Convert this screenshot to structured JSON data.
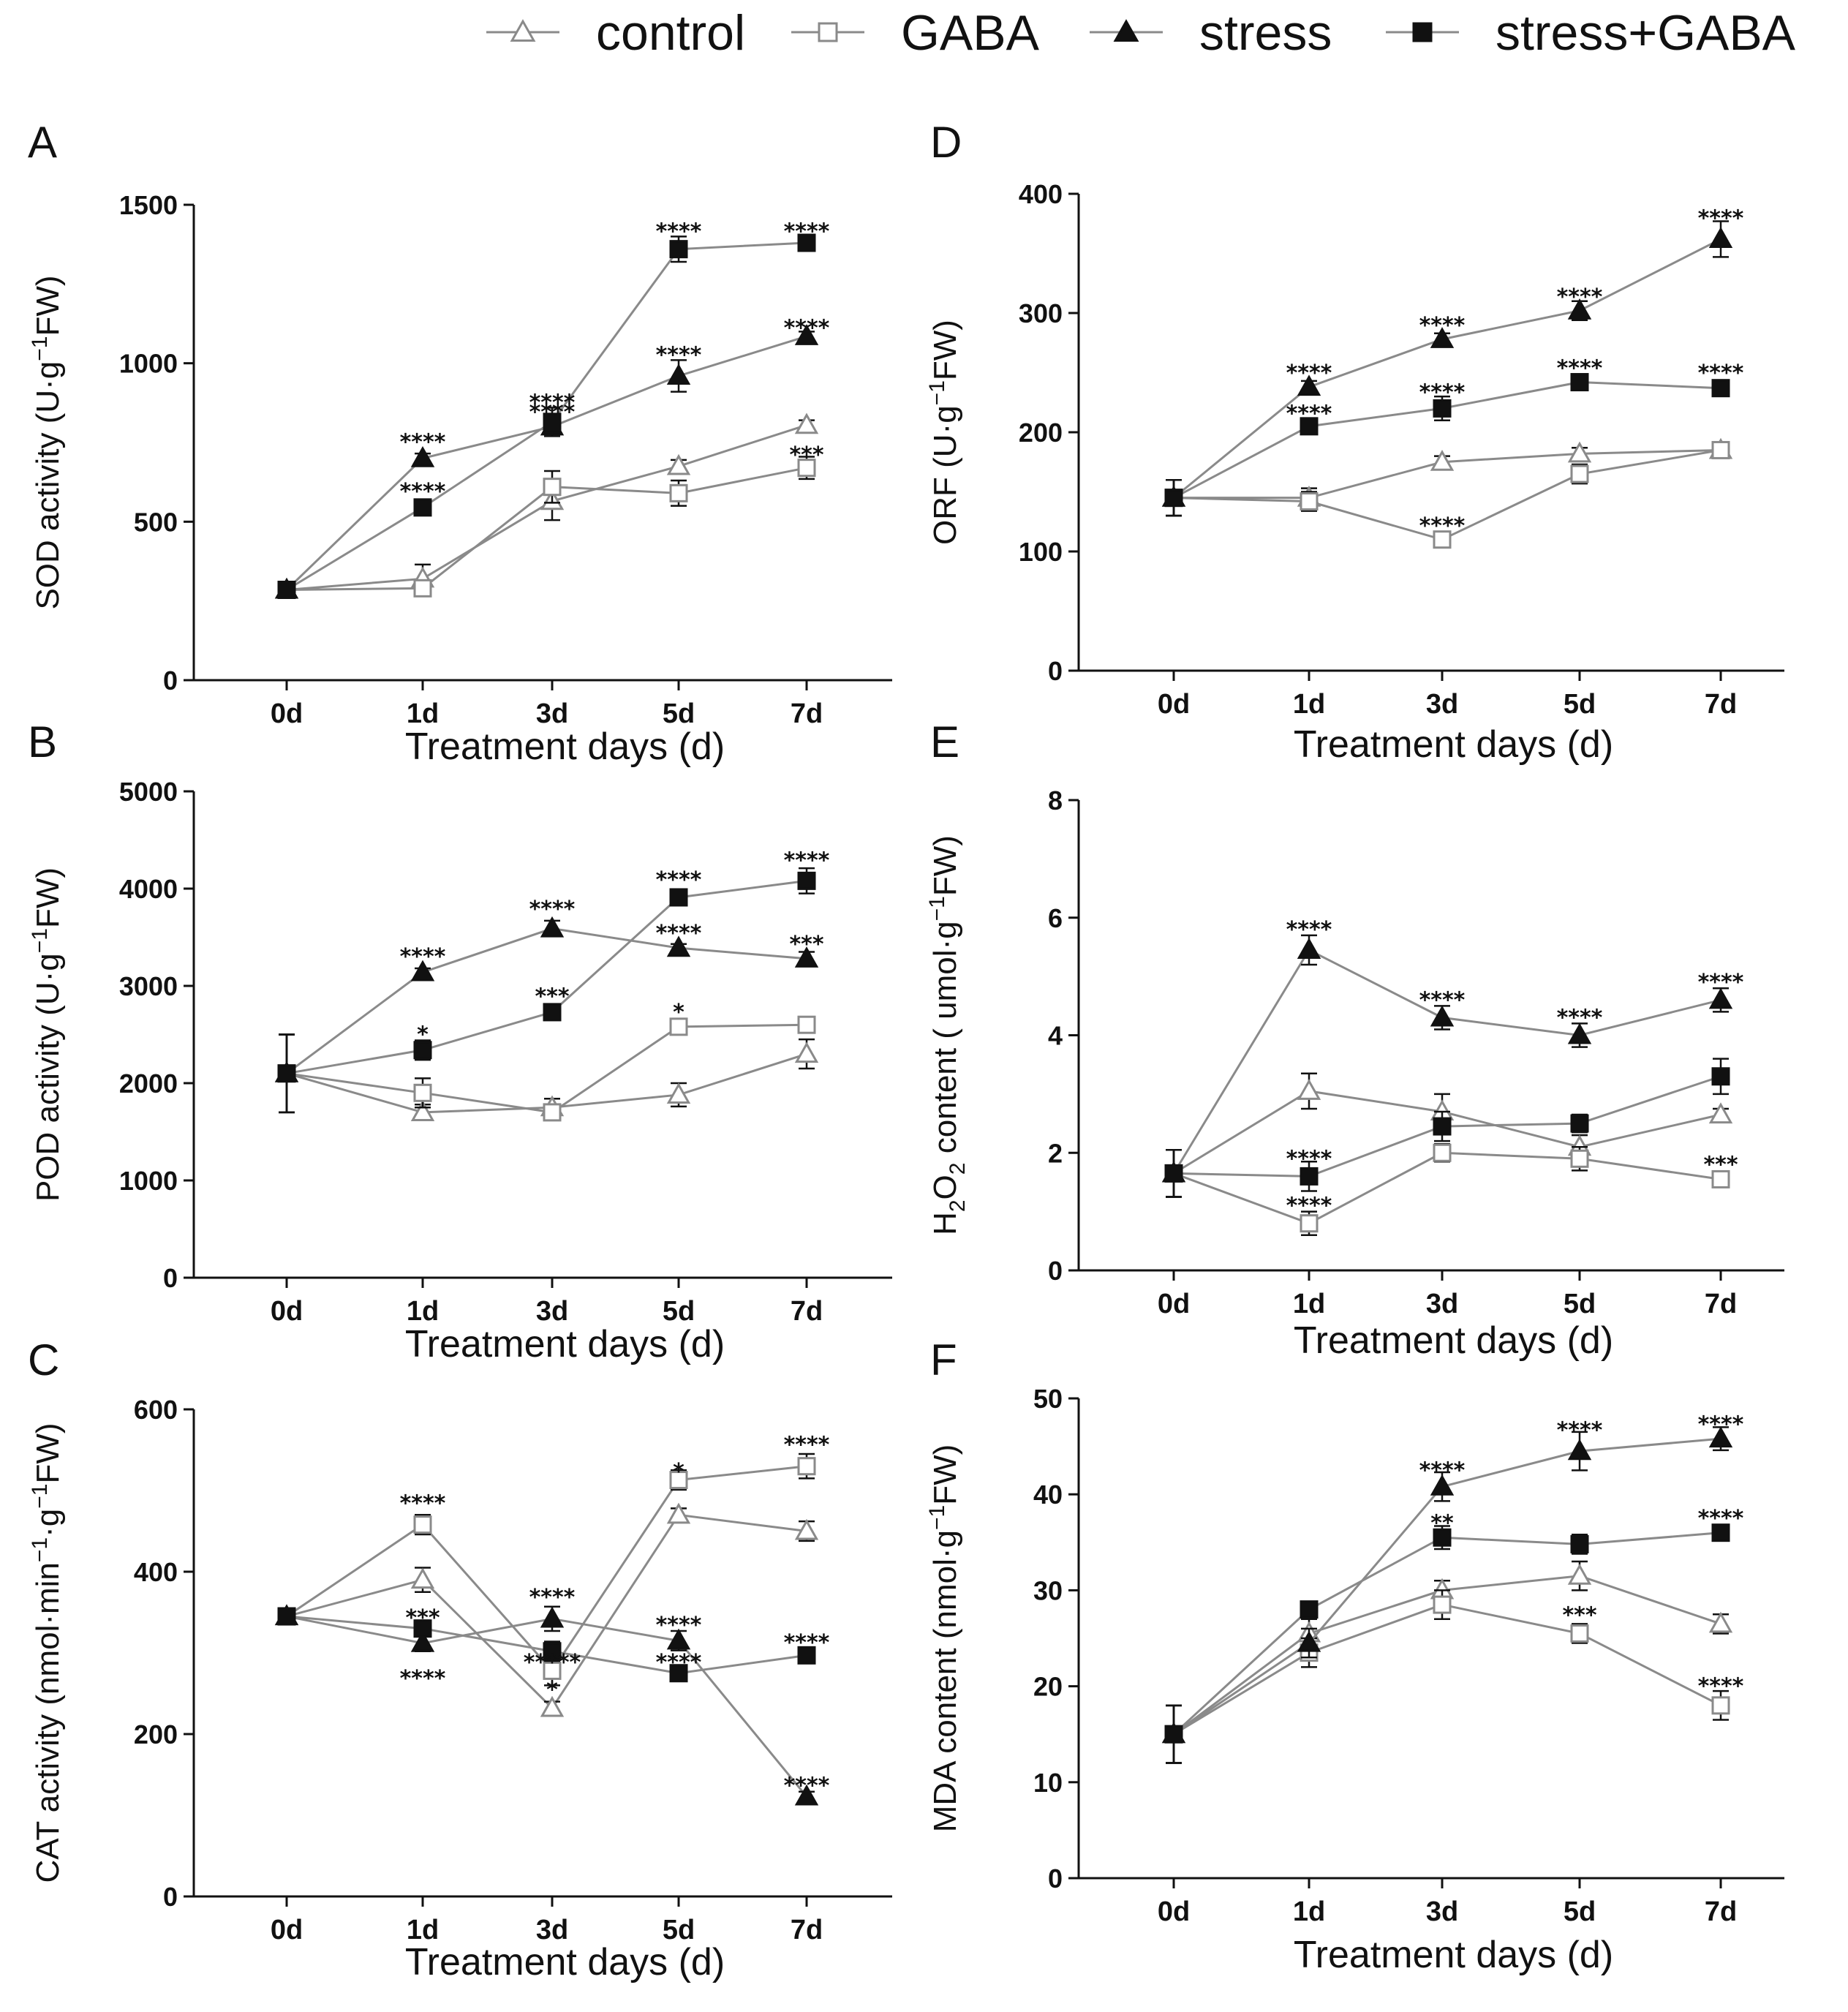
{
  "legend": {
    "items": [
      {
        "label": "control",
        "marker": "triangle-open"
      },
      {
        "label": "GABA",
        "marker": "square-open"
      },
      {
        "label": "stress",
        "marker": "triangle-filled"
      },
      {
        "label": "stress+GABA",
        "marker": "square-filled"
      }
    ]
  },
  "colors": {
    "ink": "#111111",
    "line": "#8a8a8a",
    "background": "#ffffff"
  },
  "chart_data": [
    {
      "panel": "A",
      "type": "line",
      "ylabel_main": "SOD activity (U·g",
      "ylabel_sup": "−1",
      "ylabel_tail": "FW)",
      "xlabel": "Treatment days (d)",
      "categories": [
        "0d",
        "1d",
        "3d",
        "5d",
        "7d"
      ],
      "ylim": [
        0,
        1500
      ],
      "yticks": [
        0,
        500,
        1000,
        1500
      ],
      "series": [
        {
          "name": "control",
          "values": [
            285,
            320,
            565,
            675,
            805
          ],
          "err": [
            15,
            45,
            60,
            20,
            15
          ]
        },
        {
          "name": "GABA",
          "values": [
            285,
            290,
            610,
            590,
            670
          ],
          "err": [
            15,
            20,
            50,
            40,
            35
          ]
        },
        {
          "name": "stress",
          "values": [
            285,
            700,
            800,
            960,
            1085
          ],
          "err": [
            15,
            15,
            20,
            50,
            15
          ]
        },
        {
          "name": "stress+GABA",
          "values": [
            285,
            545,
            815,
            1360,
            1380
          ],
          "err": [
            15,
            20,
            45,
            40,
            15
          ]
        }
      ],
      "significance": [
        {
          "label": "****",
          "x": "1d",
          "y": 760
        },
        {
          "label": "****",
          "x": "1d",
          "y": 605
        },
        {
          "label": "****",
          "x": "3d",
          "y": 885
        },
        {
          "label": "****",
          "x": "3d",
          "y": 855
        },
        {
          "label": "****",
          "x": "5d",
          "y": 1425
        },
        {
          "label": "****",
          "x": "5d",
          "y": 1035
        },
        {
          "label": "****",
          "x": "7d",
          "y": 1425
        },
        {
          "label": "****",
          "x": "7d",
          "y": 1120
        },
        {
          "label": "***",
          "x": "7d",
          "y": 720
        }
      ]
    },
    {
      "panel": "B",
      "type": "line",
      "ylabel_main": "POD activity (U·g",
      "ylabel_sup": "−1",
      "ylabel_tail": "FW)",
      "xlabel": "Treatment days (d)",
      "categories": [
        "0d",
        "1d",
        "3d",
        "5d",
        "7d"
      ],
      "ylim": [
        0,
        5000
      ],
      "yticks": [
        0,
        1000,
        2000,
        3000,
        4000,
        5000
      ],
      "series": [
        {
          "name": "control",
          "values": [
            2100,
            1700,
            1750,
            1880,
            2300
          ],
          "err": [
            400,
            80,
            90,
            120,
            150
          ]
        },
        {
          "name": "GABA",
          "values": [
            2100,
            1900,
            1700,
            2580,
            2600
          ],
          "err": [
            400,
            150,
            70,
            50,
            70
          ]
        },
        {
          "name": "stress",
          "values": [
            2100,
            3140,
            3590,
            3390,
            3280
          ],
          "err": [
            400,
            40,
            80,
            40,
            70
          ]
        },
        {
          "name": "stress+GABA",
          "values": [
            2100,
            2340,
            2730,
            3910,
            4080
          ],
          "err": [
            400,
            100,
            40,
            40,
            130
          ]
        }
      ],
      "significance": [
        {
          "label": "****",
          "x": "1d",
          "y": 3330
        },
        {
          "label": "*",
          "x": "1d",
          "y": 2530
        },
        {
          "label": "****",
          "x": "3d",
          "y": 3820
        },
        {
          "label": "***",
          "x": "3d",
          "y": 2920
        },
        {
          "label": "****",
          "x": "5d",
          "y": 4120
        },
        {
          "label": "****",
          "x": "5d",
          "y": 3570
        },
        {
          "label": "*",
          "x": "5d",
          "y": 2760
        },
        {
          "label": "****",
          "x": "7d",
          "y": 4320
        },
        {
          "label": "***",
          "x": "7d",
          "y": 3460
        }
      ]
    },
    {
      "panel": "C",
      "type": "line",
      "ylabel_main": "CAT activity (nmol·min",
      "ylabel_sup": "−1",
      "ylabel_mid": "·g",
      "ylabel_sup2": "−1",
      "ylabel_tail": "FW)",
      "xlabel": "Treatment days (d)",
      "categories": [
        "0d",
        "1d",
        "3d",
        "5d",
        "7d"
      ],
      "ylim": [
        0,
        600
      ],
      "yticks": [
        0,
        200,
        400,
        600
      ],
      "series": [
        {
          "name": "control",
          "values": [
            345,
            390,
            232,
            470,
            450
          ],
          "err": [
            10,
            15,
            8,
            8,
            12
          ]
        },
        {
          "name": "GABA",
          "values": [
            345,
            458,
            278,
            513,
            530
          ],
          "err": [
            10,
            12,
            18,
            12,
            15
          ]
        },
        {
          "name": "stress",
          "values": [
            345,
            312,
            342,
            315,
            123
          ],
          "err": [
            10,
            10,
            15,
            12,
            6
          ]
        },
        {
          "name": "stress+GABA",
          "values": [
            345,
            330,
            302,
            275,
            297
          ],
          "err": [
            10,
            10,
            12,
            8,
            8
          ]
        }
      ],
      "significance": [
        {
          "label": "****",
          "x": "1d",
          "y": 488
        },
        {
          "label": "***",
          "x": "1d",
          "y": 347
        },
        {
          "label": "****",
          "x": "1d",
          "y": 272
        },
        {
          "label": "****",
          "x": "3d",
          "y": 372
        },
        {
          "label": "*****",
          "x": "3d",
          "y": 292
        },
        {
          "label": "*",
          "x": "3d",
          "y": 258
        },
        {
          "label": "*",
          "x": "5d",
          "y": 527
        },
        {
          "label": "****",
          "x": "5d",
          "y": 338
        },
        {
          "label": "****",
          "x": "5d",
          "y": 292
        },
        {
          "label": "****",
          "x": "7d",
          "y": 560
        },
        {
          "label": "****",
          "x": "7d",
          "y": 316
        },
        {
          "label": "****",
          "x": "7d",
          "y": 140
        }
      ]
    },
    {
      "panel": "D",
      "type": "line",
      "ylabel_main": "ORF  (U·g",
      "ylabel_sup": "−1",
      "ylabel_tail": "FW)",
      "xlabel": "Treatment days (d)",
      "categories": [
        "0d",
        "1d",
        "3d",
        "5d",
        "7d"
      ],
      "ylim": [
        0,
        400
      ],
      "yticks": [
        0,
        100,
        200,
        300,
        400
      ],
      "series": [
        {
          "name": "control",
          "values": [
            145,
            145,
            175,
            182,
            185
          ],
          "err": [
            15,
            8,
            5,
            5,
            5
          ]
        },
        {
          "name": "GABA",
          "values": [
            145,
            142,
            110,
            165,
            185
          ],
          "err": [
            15,
            8,
            5,
            8,
            5
          ]
        },
        {
          "name": "stress",
          "values": [
            145,
            238,
            278,
            302,
            362
          ],
          "err": [
            15,
            5,
            5,
            8,
            15
          ]
        },
        {
          "name": "stress+GABA",
          "values": [
            145,
            205,
            220,
            242,
            237
          ],
          "err": [
            15,
            5,
            10,
            5,
            5
          ]
        }
      ],
      "significance": [
        {
          "label": "****",
          "x": "1d",
          "y": 252
        },
        {
          "label": "****",
          "x": "1d",
          "y": 218
        },
        {
          "label": "****",
          "x": "3d",
          "y": 292
        },
        {
          "label": "****",
          "x": "3d",
          "y": 236
        },
        {
          "label": "****",
          "x": "3d",
          "y": 124
        },
        {
          "label": "****",
          "x": "5d",
          "y": 316
        },
        {
          "label": "****",
          "x": "5d",
          "y": 256
        },
        {
          "label": "****",
          "x": "7d",
          "y": 382
        },
        {
          "label": "****",
          "x": "7d",
          "y": 252
        }
      ]
    },
    {
      "panel": "E",
      "type": "line",
      "ylabel_main": "H",
      "ylabel_sub": "2",
      "ylabel_mid": "O",
      "ylabel_sub2": "2",
      "ylabel_tail": " content ( umol·g",
      "ylabel_sup": "−1",
      "ylabel_end": "FW)",
      "xlabel": "Treatment days (d)",
      "categories": [
        "0d",
        "1d",
        "3d",
        "5d",
        "7d"
      ],
      "ylim": [
        0,
        8
      ],
      "yticks": [
        0,
        2,
        4,
        6,
        8
      ],
      "series": [
        {
          "name": "control",
          "values": [
            1.65,
            3.05,
            2.7,
            2.1,
            2.65
          ],
          "err": [
            0.4,
            0.3,
            0.3,
            0.2,
            0.1
          ]
        },
        {
          "name": "GABA",
          "values": [
            1.65,
            0.8,
            2.0,
            1.9,
            1.55
          ],
          "err": [
            0.4,
            0.2,
            0.15,
            0.2,
            0.1
          ]
        },
        {
          "name": "stress",
          "values": [
            1.65,
            5.45,
            4.3,
            4.0,
            4.6
          ],
          "err": [
            0.4,
            0.25,
            0.2,
            0.2,
            0.2
          ]
        },
        {
          "name": "stress+GABA",
          "values": [
            1.65,
            1.6,
            2.45,
            2.5,
            3.3
          ],
          "err": [
            0.4,
            0.25,
            0.25,
            0.15,
            0.3
          ]
        }
      ],
      "significance": [
        {
          "label": "****",
          "x": "1d",
          "y": 5.85
        },
        {
          "label": "****",
          "x": "1d",
          "y": 1.95
        },
        {
          "label": "****",
          "x": "1d",
          "y": 1.15
        },
        {
          "label": "****",
          "x": "3d",
          "y": 4.65
        },
        {
          "label": "****",
          "x": "5d",
          "y": 4.35
        },
        {
          "label": "****",
          "x": "7d",
          "y": 4.95
        },
        {
          "label": "***",
          "x": "7d",
          "y": 1.85
        }
      ]
    },
    {
      "panel": "F",
      "type": "line",
      "ylabel_main": "MDA content (nmol·g",
      "ylabel_sup": "−1",
      "ylabel_tail": "FW)",
      "xlabel": "Treatment days (d)",
      "categories": [
        "0d",
        "1d",
        "3d",
        "5d",
        "7d"
      ],
      "ylim": [
        0,
        50
      ],
      "yticks": [
        0,
        10,
        20,
        30,
        40,
        50
      ],
      "series": [
        {
          "name": "control",
          "values": [
            15,
            25.5,
            30,
            31.5,
            26.5
          ],
          "err": [
            3,
            1.5,
            1,
            1.5,
            1
          ]
        },
        {
          "name": "GABA",
          "values": [
            15,
            23.5,
            28.5,
            25.5,
            18
          ],
          "err": [
            3,
            1.5,
            1.5,
            1,
            1.5
          ]
        },
        {
          "name": "stress",
          "values": [
            15,
            24.5,
            40.8,
            44.5,
            45.8
          ],
          "err": [
            3,
            1.5,
            1.5,
            2,
            1.2
          ]
        },
        {
          "name": "stress+GABA",
          "values": [
            15,
            28,
            35.5,
            34.8,
            36
          ],
          "err": [
            3,
            0.8,
            1.2,
            1,
            0.5
          ]
        }
      ],
      "significance": [
        {
          "label": "****",
          "x": "3d",
          "y": 42.8
        },
        {
          "label": "**",
          "x": "3d",
          "y": 37.3
        },
        {
          "label": "****",
          "x": "5d",
          "y": 47.0
        },
        {
          "label": "***",
          "x": "5d",
          "y": 27.7
        },
        {
          "label": "****",
          "x": "7d",
          "y": 47.6
        },
        {
          "label": "****",
          "x": "7d",
          "y": 37.8
        },
        {
          "label": "****",
          "x": "7d",
          "y": 20.3
        }
      ]
    }
  ]
}
